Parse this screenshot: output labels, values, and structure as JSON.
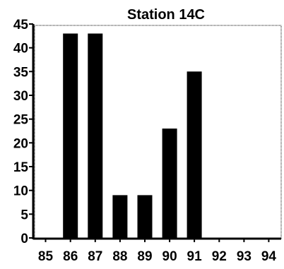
{
  "chart_data": {
    "type": "bar",
    "title": "Station 14C",
    "xlabel": "",
    "ylabel": "",
    "categories": [
      "85",
      "86",
      "87",
      "88",
      "89",
      "90",
      "91",
      "92",
      "93",
      "94"
    ],
    "values": [
      0,
      43,
      43,
      9,
      9,
      23,
      35,
      0,
      0,
      0
    ],
    "ylim": [
      0,
      45
    ],
    "yticks": [
      "0",
      "5",
      "10",
      "15",
      "20",
      "25",
      "30",
      "35",
      "40",
      "45"
    ],
    "grid": false,
    "legend": "none",
    "bar_color": "#000000",
    "axis_color": "#000000"
  }
}
